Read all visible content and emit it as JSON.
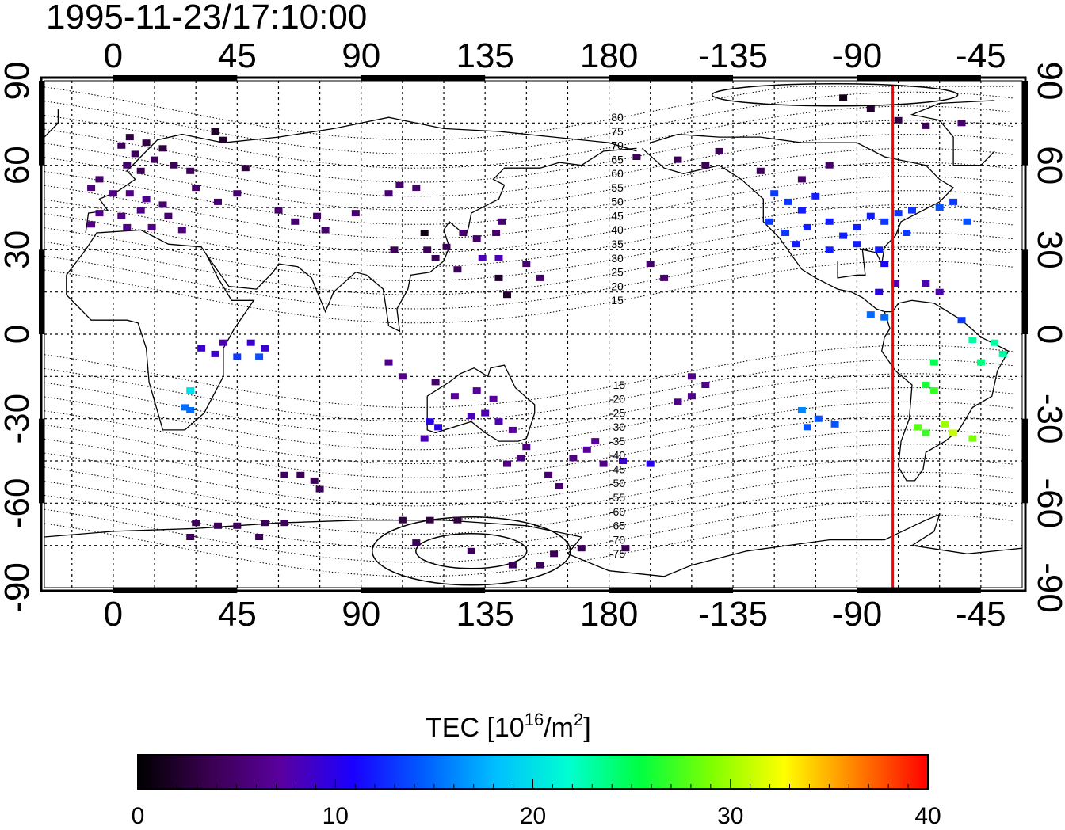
{
  "title": "1995-11-23/17:10:00",
  "axes": {
    "top_lon": [
      "0",
      "45",
      "90",
      "135",
      "180",
      "-135",
      "-90",
      "-45"
    ],
    "bottom_lon": [
      "0",
      "45",
      "90",
      "135",
      "180",
      "-135",
      "-90",
      "-45"
    ],
    "left_lat": [
      "90",
      "60",
      "30",
      "0",
      "-30",
      "-60",
      "-90"
    ],
    "right_lat": [
      "90",
      "60",
      "30",
      "0",
      "-30",
      "-60",
      "-90"
    ]
  },
  "contour_labels": [
    "80",
    "75",
    "70",
    "65",
    "60",
    "55",
    "50",
    "45",
    "40",
    "35",
    "30",
    "25",
    "20",
    "15",
    "-15",
    "-20",
    "-25",
    "-30",
    "-35",
    "-40",
    "-45",
    "-50",
    "-55",
    "-60",
    "-65",
    "-70",
    "-75"
  ],
  "marker": {
    "longitude": -77.0,
    "color": "#ff0000"
  },
  "colorbar": {
    "title_prefix": "TEC  [10",
    "title_sup1": "16",
    "title_mid": "/m",
    "title_sup2": "2",
    "title_suffix": "]",
    "ticks": [
      "0",
      "10",
      "20",
      "30",
      "40"
    ],
    "range": [
      0,
      40
    ],
    "colormap": [
      "#000000",
      "#3a0050",
      "#5a00a0",
      "#1a00ff",
      "#0060ff",
      "#00c0ff",
      "#00ffd0",
      "#00ff40",
      "#80ff00",
      "#ffff00",
      "#ff8000",
      "#ff0000"
    ]
  },
  "chart_data": {
    "type": "heatmap",
    "title": "1995-11-23/17:10:00",
    "value_label": "TEC [10^16/m^2]",
    "xlim": [
      -25,
      330
    ],
    "ylim": [
      -90,
      90
    ],
    "grid": true,
    "points": [
      {
        "lon": 3,
        "lat": 67,
        "tec": 4
      },
      {
        "lon": 6,
        "lat": 70,
        "tec": 3
      },
      {
        "lon": 8,
        "lat": 64,
        "tec": 4
      },
      {
        "lon": 12,
        "lat": 68,
        "tec": 3
      },
      {
        "lon": 15,
        "lat": 62,
        "tec": 4
      },
      {
        "lon": 18,
        "lat": 66,
        "tec": 3
      },
      {
        "lon": 22,
        "lat": 60,
        "tec": 4
      },
      {
        "lon": 10,
        "lat": 58,
        "tec": 4
      },
      {
        "lon": 5,
        "lat": 60,
        "tec": 5
      },
      {
        "lon": 28,
        "lat": 58,
        "tec": 4
      },
      {
        "lon": -5,
        "lat": 55,
        "tec": 5
      },
      {
        "lon": -8,
        "lat": 52,
        "tec": 6
      },
      {
        "lon": 0,
        "lat": 50,
        "tec": 6
      },
      {
        "lon": 6,
        "lat": 50,
        "tec": 6
      },
      {
        "lon": 12,
        "lat": 48,
        "tec": 6
      },
      {
        "lon": 18,
        "lat": 46,
        "tec": 5
      },
      {
        "lon": -5,
        "lat": 43,
        "tec": 6
      },
      {
        "lon": 3,
        "lat": 42,
        "tec": 6
      },
      {
        "lon": 10,
        "lat": 44,
        "tec": 6
      },
      {
        "lon": 20,
        "lat": 42,
        "tec": 5
      },
      {
        "lon": -8,
        "lat": 39,
        "tec": 6
      },
      {
        "lon": 5,
        "lat": 38,
        "tec": 6
      },
      {
        "lon": 14,
        "lat": 38,
        "tec": 6
      },
      {
        "lon": 25,
        "lat": 37,
        "tec": 6
      },
      {
        "lon": 37,
        "lat": 72,
        "tec": 2
      },
      {
        "lon": 40,
        "lat": 69,
        "tec": 2
      },
      {
        "lon": 48,
        "lat": 59,
        "tec": 3
      },
      {
        "lon": 30,
        "lat": 52,
        "tec": 5
      },
      {
        "lon": 45,
        "lat": 50,
        "tec": 5
      },
      {
        "lon": 38,
        "lat": 47,
        "tec": 5
      },
      {
        "lon": 60,
        "lat": 44,
        "tec": 5
      },
      {
        "lon": 66,
        "lat": 40,
        "tec": 5
      },
      {
        "lon": 74,
        "lat": 42,
        "tec": 5
      },
      {
        "lon": 77,
        "lat": 37,
        "tec": 5
      },
      {
        "lon": 88,
        "lat": 43,
        "tec": 5
      },
      {
        "lon": 100,
        "lat": 50,
        "tec": 5
      },
      {
        "lon": 104,
        "lat": 53,
        "tec": 5
      },
      {
        "lon": 110,
        "lat": 52,
        "tec": 5
      },
      {
        "lon": 102,
        "lat": 30,
        "tec": 4
      },
      {
        "lon": 114,
        "lat": 30,
        "tec": 4
      },
      {
        "lon": 117,
        "lat": 27,
        "tec": 4
      },
      {
        "lon": 121,
        "lat": 31,
        "tec": 4
      },
      {
        "lon": 125,
        "lat": 23,
        "tec": 4
      },
      {
        "lon": 113,
        "lat": 36,
        "tec": 1
      },
      {
        "lon": 127,
        "lat": 36,
        "tec": 5
      },
      {
        "lon": 132,
        "lat": 34,
        "tec": 5
      },
      {
        "lon": 139,
        "lat": 36,
        "tec": 5
      },
      {
        "lon": 141,
        "lat": 40,
        "tec": 5
      },
      {
        "lon": 140,
        "lat": 20,
        "tec": 2
      },
      {
        "lon": 143,
        "lat": 14,
        "tec": 2
      },
      {
        "lon": 150,
        "lat": 25,
        "tec": 5
      },
      {
        "lon": 155,
        "lat": 20,
        "tec": 5
      },
      {
        "lon": 140,
        "lat": 27,
        "tec": 8
      },
      {
        "lon": 134,
        "lat": 27,
        "tec": 8
      },
      {
        "lon": 195,
        "lat": 25,
        "tec": 5
      },
      {
        "lon": 200,
        "lat": 20,
        "tec": 5
      },
      {
        "lon": -170,
        "lat": 63,
        "tec": 4
      },
      {
        "lon": -155,
        "lat": 62,
        "tec": 4
      },
      {
        "lon": -145,
        "lat": 60,
        "tec": 4
      },
      {
        "lon": -140,
        "lat": 65,
        "tec": 4
      },
      {
        "lon": -125,
        "lat": 58,
        "tec": 4
      },
      {
        "lon": -110,
        "lat": 55,
        "tec": 5
      },
      {
        "lon": -100,
        "lat": 60,
        "tec": 5
      },
      {
        "lon": -95,
        "lat": 84,
        "tec": 1
      },
      {
        "lon": -85,
        "lat": 80,
        "tec": 2
      },
      {
        "lon": -75,
        "lat": 76,
        "tec": 3
      },
      {
        "lon": -65,
        "lat": 74,
        "tec": 4
      },
      {
        "lon": -52,
        "lat": 75,
        "tec": 5
      },
      {
        "lon": -120,
        "lat": 50,
        "tec": 13
      },
      {
        "lon": -115,
        "lat": 47,
        "tec": 13
      },
      {
        "lon": -110,
        "lat": 44,
        "tec": 12
      },
      {
        "lon": -105,
        "lat": 49,
        "tec": 12
      },
      {
        "lon": -122,
        "lat": 40,
        "tec": 13
      },
      {
        "lon": -116,
        "lat": 36,
        "tec": 13
      },
      {
        "lon": -108,
        "lat": 38,
        "tec": 12
      },
      {
        "lon": -100,
        "lat": 40,
        "tec": 12
      },
      {
        "lon": -95,
        "lat": 35,
        "tec": 12
      },
      {
        "lon": -90,
        "lat": 38,
        "tec": 12
      },
      {
        "lon": -85,
        "lat": 42,
        "tec": 12
      },
      {
        "lon": -80,
        "lat": 40,
        "tec": 13
      },
      {
        "lon": -75,
        "lat": 43,
        "tec": 13
      },
      {
        "lon": -70,
        "lat": 44,
        "tec": 13
      },
      {
        "lon": -72,
        "lat": 36,
        "tec": 13
      },
      {
        "lon": -82,
        "lat": 30,
        "tec": 12
      },
      {
        "lon": -90,
        "lat": 32,
        "tec": 12
      },
      {
        "lon": -100,
        "lat": 30,
        "tec": 12
      },
      {
        "lon": -112,
        "lat": 32,
        "tec": 12
      },
      {
        "lon": -60,
        "lat": 45,
        "tec": 14
      },
      {
        "lon": -55,
        "lat": 47,
        "tec": 13
      },
      {
        "lon": -50,
        "lat": 40,
        "tec": 14
      },
      {
        "lon": -80,
        "lat": 25,
        "tec": 11
      },
      {
        "lon": -82,
        "lat": 15,
        "tec": 10
      },
      {
        "lon": -76,
        "lat": 18,
        "tec": 8
      },
      {
        "lon": -65,
        "lat": 18,
        "tec": 8
      },
      {
        "lon": -60,
        "lat": 15,
        "tec": 8
      },
      {
        "lon": -85,
        "lat": 7,
        "tec": 15
      },
      {
        "lon": -80,
        "lat": 6,
        "tec": 15
      },
      {
        "lon": -52,
        "lat": 5,
        "tec": 13
      },
      {
        "lon": -48,
        "lat": -2,
        "tec": 23
      },
      {
        "lon": -40,
        "lat": -3,
        "tec": 23
      },
      {
        "lon": -37,
        "lat": -7,
        "tec": 23
      },
      {
        "lon": -45,
        "lat": -10,
        "tec": 24
      },
      {
        "lon": -62,
        "lat": -10,
        "tec": 25
      },
      {
        "lon": -65,
        "lat": -18,
        "tec": 26
      },
      {
        "lon": -62,
        "lat": -20,
        "tec": 27
      },
      {
        "lon": -68,
        "lat": -33,
        "tec": 28
      },
      {
        "lon": -65,
        "lat": -35,
        "tec": 27
      },
      {
        "lon": -58,
        "lat": -32,
        "tec": 30
      },
      {
        "lon": -55,
        "lat": -35,
        "tec": 31
      },
      {
        "lon": -48,
        "lat": -37,
        "tec": 29
      },
      {
        "lon": -110,
        "lat": -27,
        "tec": 16
      },
      {
        "lon": -104,
        "lat": -30,
        "tec": 14
      },
      {
        "lon": -108,
        "lat": -33,
        "tec": 14
      },
      {
        "lon": -98,
        "lat": -32,
        "tec": 14
      },
      {
        "lon": -150,
        "lat": -15,
        "tec": 6
      },
      {
        "lon": -145,
        "lat": -18,
        "tec": 6
      },
      {
        "lon": -150,
        "lat": -22,
        "tec": 6
      },
      {
        "lon": -155,
        "lat": -24,
        "tec": 6
      },
      {
        "lon": 28,
        "lat": -20,
        "tec": 20
      },
      {
        "lon": 28,
        "lat": -27,
        "tec": 15
      },
      {
        "lon": 26,
        "lat": -26,
        "tec": 15
      },
      {
        "lon": 32,
        "lat": -5,
        "tec": 9
      },
      {
        "lon": 37,
        "lat": -7,
        "tec": 9
      },
      {
        "lon": 40,
        "lat": -3,
        "tec": 8
      },
      {
        "lon": 50,
        "lat": -3,
        "tec": 9
      },
      {
        "lon": 55,
        "lat": -5,
        "tec": 9
      },
      {
        "lon": 53,
        "lat": -8,
        "tec": 14
      },
      {
        "lon": 45,
        "lat": -8,
        "tec": 13
      },
      {
        "lon": 100,
        "lat": -10,
        "tec": 6
      },
      {
        "lon": 105,
        "lat": -15,
        "tec": 6
      },
      {
        "lon": 117,
        "lat": -17,
        "tec": 5
      },
      {
        "lon": 124,
        "lat": -22,
        "tec": 7
      },
      {
        "lon": 132,
        "lat": -20,
        "tec": 7
      },
      {
        "lon": 138,
        "lat": -23,
        "tec": 7
      },
      {
        "lon": 130,
        "lat": -29,
        "tec": 8
      },
      {
        "lon": 135,
        "lat": -28,
        "tec": 8
      },
      {
        "lon": 140,
        "lat": -31,
        "tec": 8
      },
      {
        "lon": 145,
        "lat": -34,
        "tec": 7
      },
      {
        "lon": 115,
        "lat": -31,
        "tec": 10
      },
      {
        "lon": 118,
        "lat": -33,
        "tec": 10
      },
      {
        "lon": 113,
        "lat": -37,
        "tec": 8
      },
      {
        "lon": 150,
        "lat": -40,
        "tec": 6
      },
      {
        "lon": 148,
        "lat": -44,
        "tec": 6
      },
      {
        "lon": 143,
        "lat": -46,
        "tec": 6
      },
      {
        "lon": 167,
        "lat": -44,
        "tec": 6
      },
      {
        "lon": 175,
        "lat": -38,
        "tec": 7
      },
      {
        "lon": 172,
        "lat": -41,
        "tec": 7
      },
      {
        "lon": 178,
        "lat": -46,
        "tec": 6
      },
      {
        "lon": 185,
        "lat": -45,
        "tec": 9
      },
      {
        "lon": 195,
        "lat": -46,
        "tec": 10
      },
      {
        "lon": 158,
        "lat": -50,
        "tec": 5
      },
      {
        "lon": 162,
        "lat": -54,
        "tec": 5
      },
      {
        "lon": 62,
        "lat": -50,
        "tec": 4
      },
      {
        "lon": 68,
        "lat": -50,
        "tec": 4
      },
      {
        "lon": 73,
        "lat": -52,
        "tec": 4
      },
      {
        "lon": 75,
        "lat": -55,
        "tec": 4
      },
      {
        "lon": 30,
        "lat": -67,
        "tec": 4
      },
      {
        "lon": 38,
        "lat": -68,
        "tec": 4
      },
      {
        "lon": 45,
        "lat": -68,
        "tec": 4
      },
      {
        "lon": 55,
        "lat": -67,
        "tec": 4
      },
      {
        "lon": 62,
        "lat": -67,
        "tec": 4
      },
      {
        "lon": 28,
        "lat": -72,
        "tec": 4
      },
      {
        "lon": 53,
        "lat": -72,
        "tec": 4
      },
      {
        "lon": 105,
        "lat": -66,
        "tec": 3
      },
      {
        "lon": 115,
        "lat": -66,
        "tec": 3
      },
      {
        "lon": 125,
        "lat": -66,
        "tec": 3
      },
      {
        "lon": 110,
        "lat": -74,
        "tec": 4
      },
      {
        "lon": 130,
        "lat": -77,
        "tec": 4
      },
      {
        "lon": 145,
        "lat": -82,
        "tec": 4
      },
      {
        "lon": 155,
        "lat": -82,
        "tec": 4
      },
      {
        "lon": 160,
        "lat": -78,
        "tec": 4
      },
      {
        "lon": 170,
        "lat": -76,
        "tec": 4
      },
      {
        "lon": 186,
        "lat": -76,
        "tec": 4
      }
    ],
    "mag_contours_lat": [
      80,
      75,
      70,
      65,
      60,
      55,
      50,
      45,
      40,
      35,
      30,
      25,
      20,
      15,
      -15,
      -20,
      -25,
      -30,
      -35,
      -40,
      -45,
      -50,
      -55,
      -60,
      -65,
      -70,
      -75
    ]
  }
}
